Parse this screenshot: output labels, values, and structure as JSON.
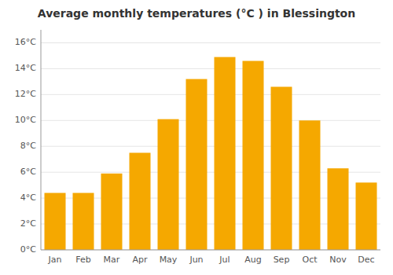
{
  "chart_data": {
    "type": "bar",
    "title": "Average monthly temperatures (°C ) in Blessington",
    "categories": [
      "Jan",
      "Feb",
      "Mar",
      "Apr",
      "May",
      "Jun",
      "Jul",
      "Aug",
      "Sep",
      "Oct",
      "Nov",
      "Dec"
    ],
    "values": [
      4.4,
      4.4,
      5.9,
      7.5,
      10.1,
      13.2,
      14.9,
      14.6,
      12.6,
      10.0,
      6.3,
      5.2
    ],
    "color": "#F5A800",
    "ylim": [
      0,
      17
    ],
    "yticks": [
      {
        "value": 0,
        "label": "0°C"
      },
      {
        "value": 2,
        "label": "2°C"
      },
      {
        "value": 4,
        "label": "4°C"
      },
      {
        "value": 6,
        "label": "6°C"
      },
      {
        "value": 8,
        "label": "8°C"
      },
      {
        "value": 10,
        "label": "10°C"
      },
      {
        "value": 12,
        "label": "12°C"
      },
      {
        "value": 14,
        "label": "14°C"
      },
      {
        "value": 16,
        "label": "16°C"
      }
    ],
    "grid": true
  }
}
